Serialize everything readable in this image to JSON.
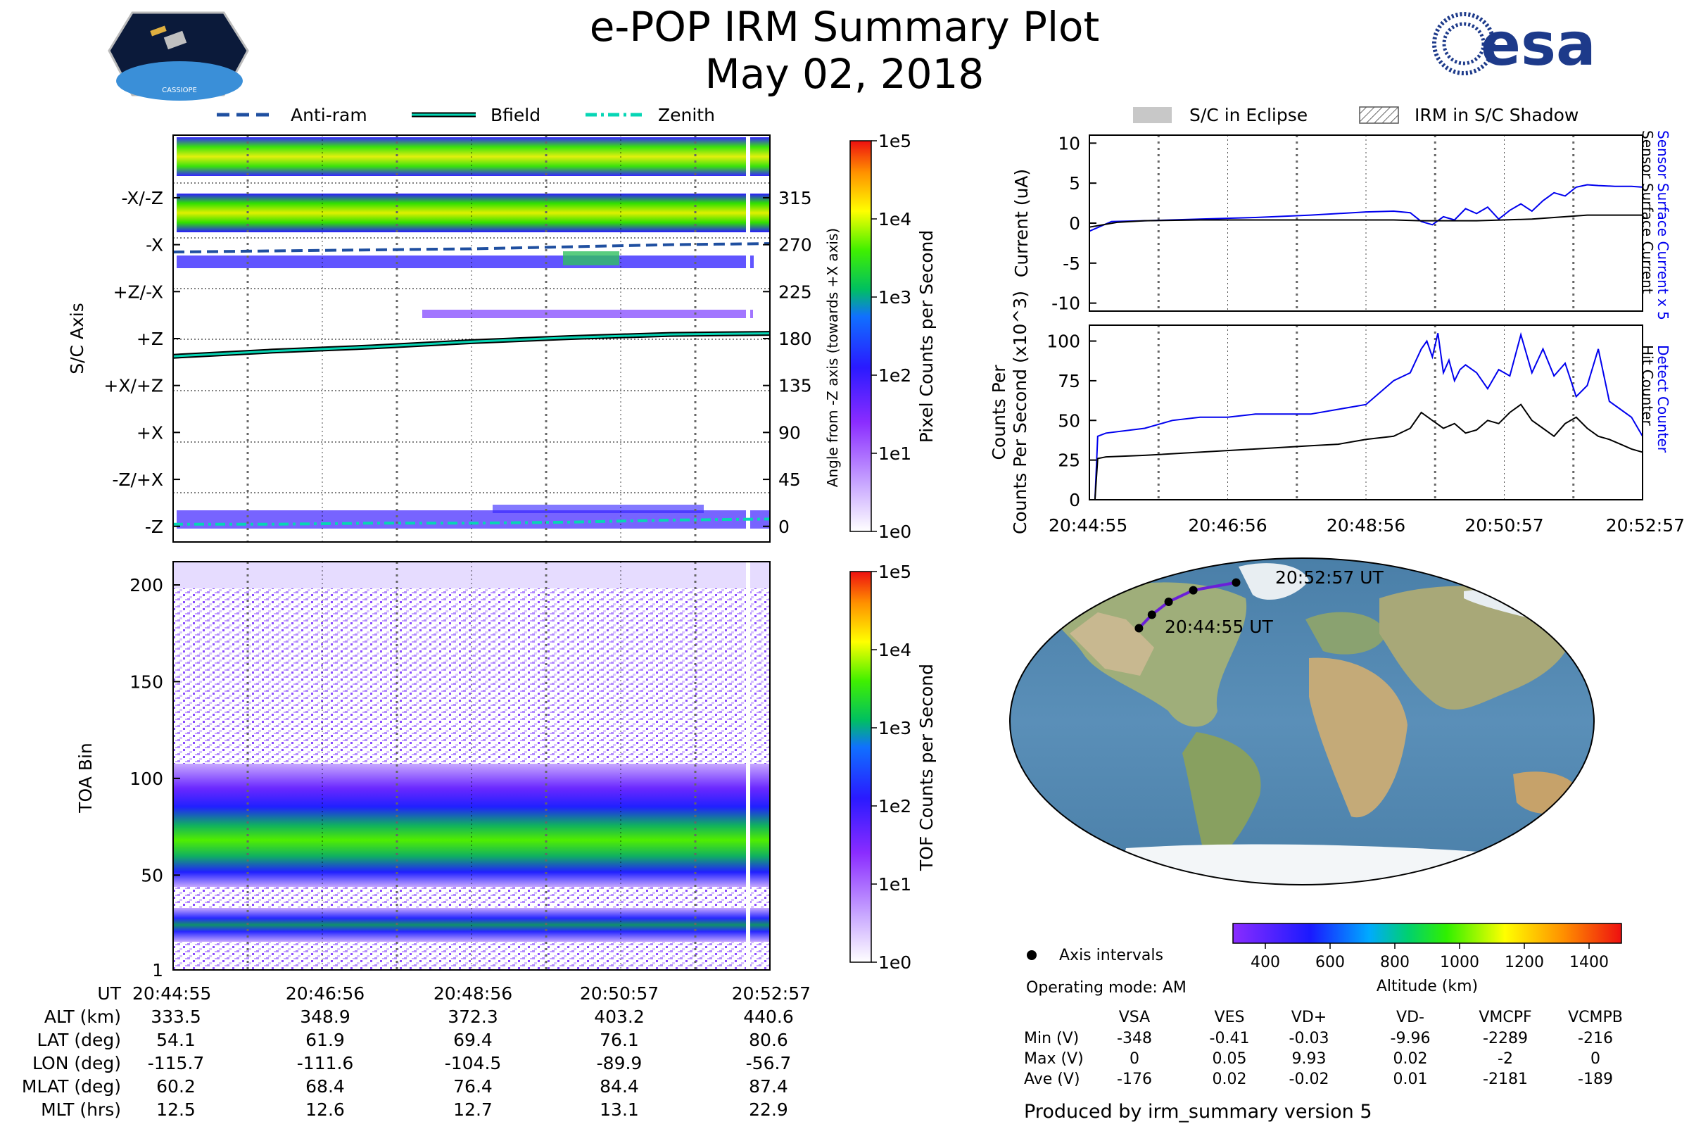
{
  "header": {
    "title": "e-POP IRM Summary Plot",
    "date": "May 02, 2018",
    "cassiope_label": "CASSIOPE",
    "esa_label": "esa"
  },
  "legend_top": {
    "antiram": "Anti-ram",
    "bfield": "Bfield",
    "zenith": "Zenith",
    "eclipse": "S/C in Eclipse",
    "shadow": "IRM in S/C Shadow"
  },
  "colors": {
    "antiram": "#1f4fa0",
    "bfield": "#06d6b5",
    "zenith": "#06d6b5",
    "blue": "#0000ee",
    "black": "#000000"
  },
  "times": [
    "20:44:55",
    "20:46:56",
    "20:48:56",
    "20:50:57",
    "20:52:57"
  ],
  "chart_data": [
    {
      "type": "heatmap",
      "name": "pixel-counts",
      "ylabel": "S/C Axis",
      "y_right_label": "Angle from -Z axis (towards +X axis)",
      "axis_labels": [
        "-X/-Z",
        "-X",
        "+Z/-X",
        "+Z",
        "+X/+Z",
        "+X",
        "-Z/+X",
        "-Z"
      ],
      "angle_ticks": [
        315,
        270,
        225,
        180,
        135,
        90,
        45,
        0
      ],
      "ylim": [
        -15,
        375
      ],
      "colorbar_label": "Pixel Counts per Second",
      "colorbar_ticks": [
        "1e5",
        "1e4",
        "1e3",
        "1e2",
        "1e1",
        "1e0"
      ],
      "bfield_angle": [
        163,
        168,
        172,
        177,
        181,
        184,
        185
      ],
      "antiram_angle": [
        263,
        264,
        265,
        266,
        268,
        270,
        271
      ],
      "zenith_angle": [
        2,
        2,
        3,
        3,
        4,
        6,
        7
      ]
    },
    {
      "type": "heatmap",
      "name": "tof-counts",
      "ylabel": "TOA Bin",
      "yticks": [
        1,
        50,
        100,
        150,
        200
      ],
      "ylim": [
        1,
        212
      ],
      "colorbar_label": "TOF Counts per Second",
      "colorbar_ticks": [
        "1e5",
        "1e4",
        "1e3",
        "1e2",
        "1e1",
        "1e0"
      ]
    },
    {
      "type": "line",
      "name": "current",
      "ylabel": "Current (uA)",
      "ylim": [
        -11,
        11
      ],
      "yticks": [
        10,
        5,
        0,
        -5,
        -10
      ],
      "series": [
        {
          "name": "Sensor Surface Current x 5",
          "color": "#0000ee",
          "x": [
            0,
            4,
            10,
            20,
            30,
            40,
            45,
            50,
            55,
            58,
            60,
            62,
            64,
            66,
            68,
            70,
            72,
            74,
            76,
            78,
            80,
            82,
            84,
            86,
            88,
            90,
            92,
            95,
            98,
            100
          ],
          "values": [
            -1,
            0.2,
            0.3,
            0.5,
            0.7,
            1,
            1.2,
            1.4,
            1.5,
            1.3,
            0.2,
            -0.2,
            0.8,
            0.4,
            1.8,
            1.2,
            2,
            0.5,
            1.6,
            2.4,
            1.5,
            2.8,
            3.8,
            3.4,
            4.5,
            4.8,
            4.7,
            4.6,
            4.6,
            4.5
          ]
        },
        {
          "name": "Sensor Surface Current",
          "color": "#000000",
          "x": [
            0,
            5,
            10,
            20,
            30,
            40,
            50,
            55,
            60,
            70,
            80,
            90,
            100
          ],
          "values": [
            -0.5,
            0.1,
            0.3,
            0.4,
            0.4,
            0.4,
            0.4,
            0.4,
            0.3,
            0.3,
            0.5,
            1,
            1
          ]
        }
      ]
    },
    {
      "type": "line",
      "name": "hit-counter",
      "ylabel": "Counts Per Second (x10^3)",
      "ylim": [
        0,
        110
      ],
      "yticks": [
        0,
        25,
        50,
        75,
        100
      ],
      "series": [
        {
          "name": "Detect Counter",
          "color": "#0000ee",
          "x": [
            0,
            1,
            1.5,
            3,
            10,
            15,
            20,
            25,
            30,
            40,
            45,
            50,
            55,
            58,
            60,
            61,
            62,
            63,
            64,
            65,
            66,
            67,
            68,
            70,
            72,
            74,
            76,
            78,
            80,
            82,
            84,
            86,
            88,
            90,
            92,
            94,
            96,
            98,
            100
          ],
          "values": [
            0,
            0,
            40,
            42,
            45,
            50,
            52,
            52,
            54,
            54,
            57,
            60,
            75,
            80,
            95,
            100,
            90,
            105,
            80,
            88,
            75,
            82,
            85,
            80,
            70,
            82,
            78,
            104,
            80,
            95,
            78,
            86,
            65,
            72,
            95,
            62,
            57,
            52,
            40
          ]
        },
        {
          "name": "Hit Counter",
          "color": "#000000",
          "x": [
            0,
            1,
            1.5,
            3,
            10,
            20,
            30,
            40,
            45,
            50,
            55,
            58,
            60,
            62,
            64,
            66,
            68,
            70,
            72,
            74,
            76,
            78,
            80,
            82,
            84,
            86,
            88,
            90,
            92,
            94,
            96,
            98,
            100
          ],
          "values": [
            0,
            0,
            26,
            27,
            28,
            30,
            32,
            34,
            35,
            38,
            40,
            45,
            55,
            50,
            45,
            48,
            42,
            44,
            50,
            48,
            55,
            60,
            50,
            45,
            40,
            48,
            52,
            45,
            40,
            38,
            35,
            32,
            30
          ]
        }
      ],
      "xticks": [
        "20:44:55",
        "20:46:56",
        "20:48:56",
        "20:50:57",
        "20:52:57"
      ]
    },
    {
      "type": "map",
      "name": "orbit-track",
      "start_label": "20:44:55 UT",
      "end_label": "20:52:57 UT",
      "track_lon": [
        -115.7,
        -111.6,
        -104.5,
        -89.9,
        -56.7
      ],
      "track_lat": [
        54.1,
        61.9,
        69.4,
        76.1,
        80.6
      ],
      "colorbar_label": "Altitude (km)",
      "colorbar_ticks": [
        400,
        600,
        800,
        1000,
        1200,
        1400
      ],
      "colorbar_range": [
        300,
        1500
      ]
    },
    {
      "type": "table",
      "name": "ephemeris",
      "rows": [
        {
          "label": "UT",
          "values": [
            "20:44:55",
            "20:46:56",
            "20:48:56",
            "20:50:57",
            "20:52:57"
          ]
        },
        {
          "label": "ALT (km)",
          "values": [
            "333.5",
            "348.9",
            "372.3",
            "403.2",
            "440.6"
          ]
        },
        {
          "label": "LAT (deg)",
          "values": [
            "54.1",
            "61.9",
            "69.4",
            "76.1",
            "80.6"
          ]
        },
        {
          "label": "LON (deg)",
          "values": [
            "-115.7",
            "-111.6",
            "-104.5",
            "-89.9",
            "-56.7"
          ]
        },
        {
          "label": "MLAT (deg)",
          "values": [
            "60.2",
            "68.4",
            "76.4",
            "84.4",
            "87.4"
          ]
        },
        {
          "label": "MLT (hrs)",
          "values": [
            "12.5",
            "12.6",
            "12.7",
            "13.1",
            "22.9"
          ]
        }
      ]
    },
    {
      "type": "table",
      "name": "voltages",
      "columns": [
        "VSA",
        "VES",
        "VD+",
        "VD-",
        "VMCPF",
        "VCMPB"
      ],
      "rows": [
        {
          "label": "Min (V)",
          "values": [
            "-348",
            "-0.41",
            "-0.03",
            "-9.96",
            "-2289",
            "-216"
          ]
        },
        {
          "label": "Max (V)",
          "values": [
            "0",
            "0.05",
            "9.93",
            "0.02",
            "-2",
            "0"
          ]
        },
        {
          "label": "Ave (V)",
          "values": [
            "-176",
            "0.02",
            "-0.02",
            "0.01",
            "-2181",
            "-189"
          ]
        }
      ]
    }
  ],
  "info": {
    "axis_intervals": "Axis intervals",
    "operating_mode": "Operating mode: AM",
    "produced_by": "Produced by irm_summary version 5"
  }
}
